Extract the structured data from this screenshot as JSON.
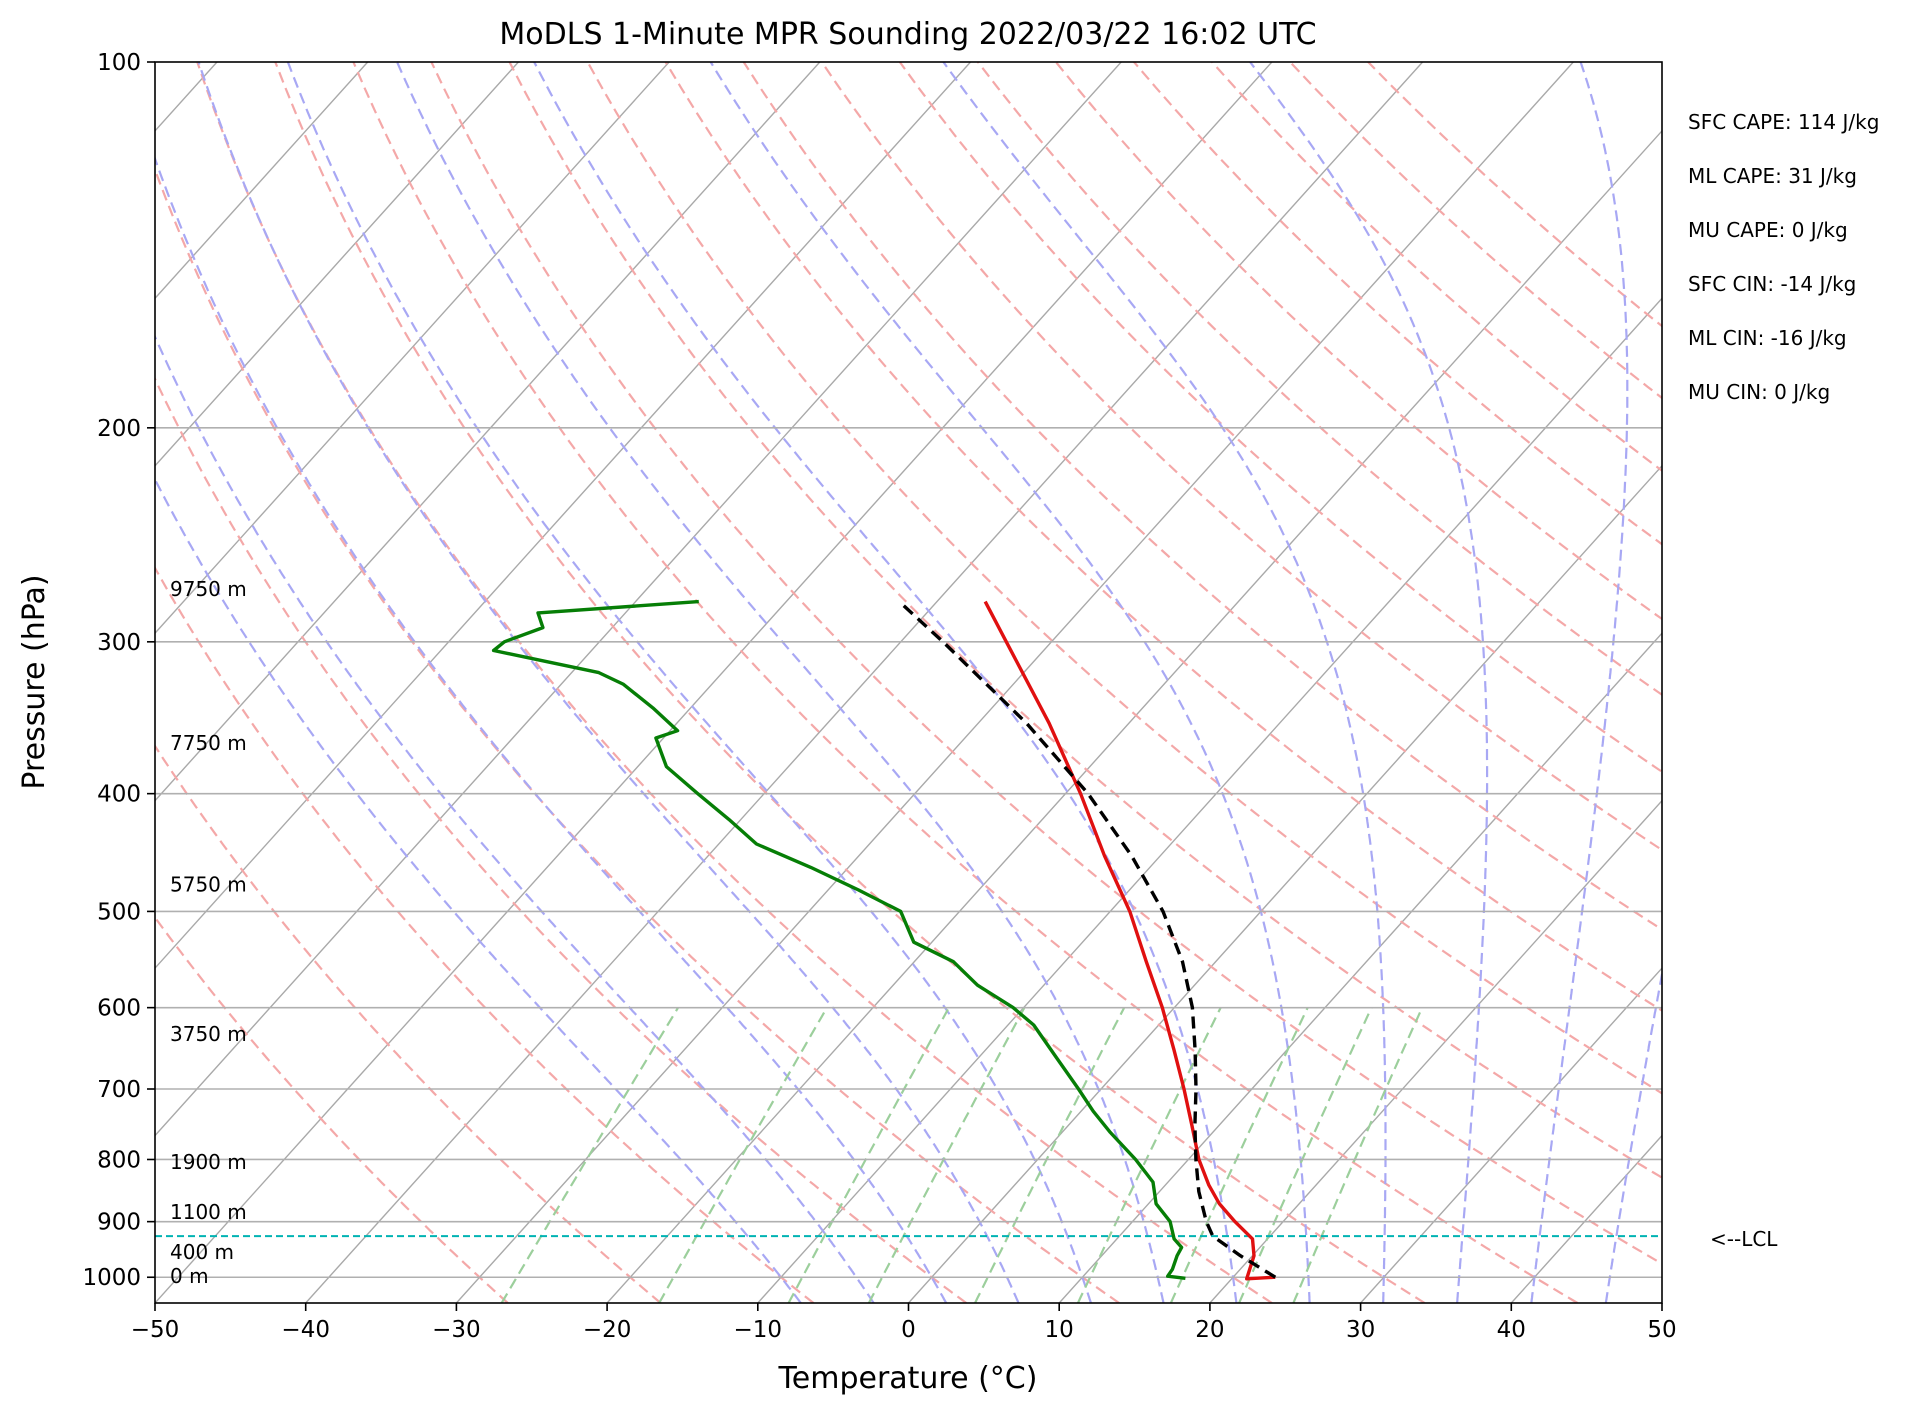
{
  "chart_data": {
    "type": "line",
    "title": "MoDLS 1-Minute MPR Sounding 2022/03/22 16:02 UTC",
    "xlabel": "Temperature (°C)",
    "ylabel": "Pressure (hPa)",
    "xlim": [
      -50,
      50
    ],
    "ylim": [
      1050,
      100
    ],
    "y_scale": "log",
    "x_ticks": [
      -50,
      -40,
      -30,
      -20,
      -10,
      0,
      10,
      20,
      30,
      40,
      50
    ],
    "y_ticks": [
      100,
      200,
      300,
      400,
      500,
      600,
      700,
      800,
      900,
      1000
    ],
    "grid": true,
    "background_lines": {
      "isotherms": {
        "color": "#a9a9a9",
        "style": "solid"
      },
      "dry_adiabats": {
        "color": "#f4a8a8",
        "style": "dashed"
      },
      "moist_adiabats": {
        "color": "#a8a8f4",
        "style": "dashed"
      },
      "mixing_ratio": {
        "color": "#9ccf9c",
        "style": "dashed"
      }
    },
    "series": [
      {
        "color": "#e01010",
        "style": "solid",
        "points": [
          {
            "p": 1000,
            "t": 22.8
          },
          {
            "p": 1003,
            "t": 21.0
          },
          {
            "p": 960,
            "t": 20.1
          },
          {
            "p": 930,
            "t": 19.0
          },
          {
            "p": 900,
            "t": 16.8
          },
          {
            "p": 870,
            "t": 14.7
          },
          {
            "p": 840,
            "t": 12.9
          },
          {
            "p": 800,
            "t": 10.7
          },
          {
            "p": 750,
            "t": 8.2
          },
          {
            "p": 700,
            "t": 5.5
          },
          {
            "p": 650,
            "t": 2.5
          },
          {
            "p": 600,
            "t": -0.8
          },
          {
            "p": 550,
            "t": -4.6
          },
          {
            "p": 500,
            "t": -8.7
          },
          {
            "p": 450,
            "t": -13.7
          },
          {
            "p": 400,
            "t": -19.0
          },
          {
            "p": 350,
            "t": -25.3
          },
          {
            "p": 300,
            "t": -33.0
          },
          {
            "p": 278,
            "t": -36.8
          }
        ]
      },
      {
        "color": "#067e06",
        "style": "solid",
        "points": [
          {
            "p": 1002,
            "t": 16.9
          },
          {
            "p": 998,
            "t": 15.6
          },
          {
            "p": 985,
            "t": 15.5
          },
          {
            "p": 960,
            "t": 15.0
          },
          {
            "p": 945,
            "t": 14.8
          },
          {
            "p": 930,
            "t": 13.8
          },
          {
            "p": 900,
            "t": 12.5
          },
          {
            "p": 870,
            "t": 10.5
          },
          {
            "p": 835,
            "t": 9.0
          },
          {
            "p": 800,
            "t": 6.5
          },
          {
            "p": 760,
            "t": 3.2
          },
          {
            "p": 730,
            "t": 0.8
          },
          {
            "p": 700,
            "t": -1.5
          },
          {
            "p": 660,
            "t": -4.8
          },
          {
            "p": 620,
            "t": -8.3
          },
          {
            "p": 600,
            "t": -10.7
          },
          {
            "p": 575,
            "t": -14.4
          },
          {
            "p": 550,
            "t": -17.4
          },
          {
            "p": 530,
            "t": -21.2
          },
          {
            "p": 500,
            "t": -23.9
          },
          {
            "p": 480,
            "t": -28.0
          },
          {
            "p": 460,
            "t": -32.5
          },
          {
            "p": 440,
            "t": -37.5
          },
          {
            "p": 420,
            "t": -40.8
          },
          {
            "p": 400,
            "t": -44.4
          },
          {
            "p": 380,
            "t": -48.1
          },
          {
            "p": 360,
            "t": -50.5
          },
          {
            "p": 355,
            "t": -49.5
          },
          {
            "p": 340,
            "t": -52.5
          },
          {
            "p": 325,
            "t": -55.9
          },
          {
            "p": 318,
            "t": -58.2
          },
          {
            "p": 305,
            "t": -66.5
          },
          {
            "p": 300,
            "t": -66.3
          },
          {
            "p": 292,
            "t": -64.6
          },
          {
            "p": 284,
            "t": -65.8
          },
          {
            "p": 278,
            "t": -55.8
          }
        ]
      },
      {
        "color": "#000000",
        "style": "dashed",
        "points": [
          {
            "p": 1000,
            "t": 22.8
          },
          {
            "p": 960,
            "t": 19.2
          },
          {
            "p": 925,
            "t": 16.2
          },
          {
            "p": 900,
            "t": 14.9
          },
          {
            "p": 850,
            "t": 12.6
          },
          {
            "p": 800,
            "t": 10.5
          },
          {
            "p": 750,
            "t": 8.4
          },
          {
            "p": 700,
            "t": 6.3
          },
          {
            "p": 650,
            "t": 3.9
          },
          {
            "p": 600,
            "t": 1.2
          },
          {
            "p": 550,
            "t": -2.2
          },
          {
            "p": 500,
            "t": -6.5
          },
          {
            "p": 450,
            "t": -11.9
          },
          {
            "p": 400,
            "t": -18.5
          },
          {
            "p": 350,
            "t": -26.8
          },
          {
            "p": 300,
            "t": -37.2
          },
          {
            "p": 278,
            "t": -42.5
          }
        ]
      }
    ],
    "lcl": {
      "p": 925,
      "label": "<--LCL",
      "color": "#00b3b3"
    },
    "height_labels": [
      {
        "p": 1000,
        "label": "0 m"
      },
      {
        "p": 955,
        "label": "400 m"
      },
      {
        "p": 885,
        "label": "1100 m"
      },
      {
        "p": 805,
        "label": "1900 m"
      },
      {
        "p": 632,
        "label": "3750 m"
      },
      {
        "p": 476,
        "label": "5750 m"
      },
      {
        "p": 364,
        "label": "7750 m"
      },
      {
        "p": 272,
        "label": "9750 m"
      }
    ],
    "annotations": [
      "SFC CAPE: 114 J/kg",
      "ML CAPE: 31 J/kg",
      "MU CAPE: 0 J/kg",
      "SFC CIN: -14 J/kg",
      "ML CIN: -16 J/kg",
      "MU CIN: 0 J/kg"
    ]
  }
}
